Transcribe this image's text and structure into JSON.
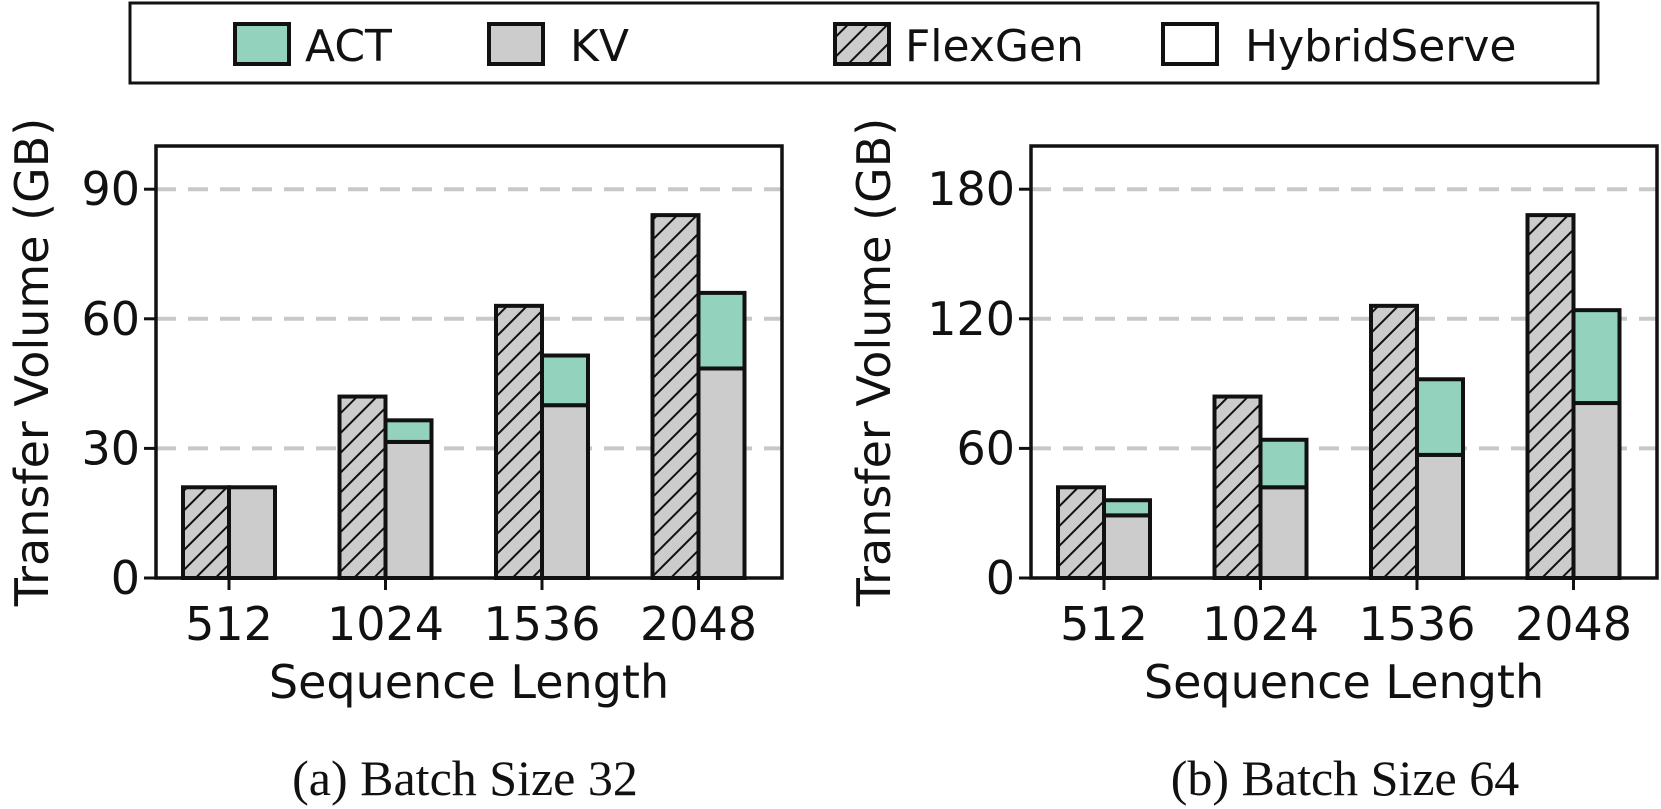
{
  "legend": {
    "items": [
      {
        "label": "ACT",
        "kind": "act"
      },
      {
        "label": "KV",
        "kind": "kv"
      },
      {
        "label": "FlexGen",
        "kind": "flexgen"
      },
      {
        "label": "HybridServe",
        "kind": "hybridserve"
      }
    ]
  },
  "colors": {
    "act": "#93d3bd",
    "kv": "#cccccc",
    "flexgen_fill": "#cccccc",
    "grid": "#c8c8c8",
    "stroke": "#111111"
  },
  "chart_data": [
    {
      "type": "bar",
      "caption": "(a) Batch Size 32",
      "xlabel": "Sequence Length",
      "ylabel": "Transfer Volume (GB)",
      "categories": [
        "512",
        "1024",
        "1536",
        "2048"
      ],
      "ylim": [
        0,
        100
      ],
      "yticks": [
        0,
        30,
        60,
        90
      ],
      "grid": "horizontal dashed",
      "series": [
        {
          "name": "FlexGen",
          "stack": "flexgen",
          "component": "KV",
          "values": [
            21,
            42,
            63,
            84
          ]
        },
        {
          "name": "HybridServe",
          "stack": "hybridserve",
          "component": "KV",
          "values": [
            21,
            31.5,
            40,
            48.5
          ]
        },
        {
          "name": "HybridServe",
          "stack": "hybridserve",
          "component": "ACT",
          "values": [
            0,
            5,
            11.5,
            17.5
          ]
        }
      ]
    },
    {
      "type": "bar",
      "caption": "(b) Batch Size 64",
      "xlabel": "Sequence Length",
      "ylabel": "Transfer Volume (GB)",
      "categories": [
        "512",
        "1024",
        "1536",
        "2048"
      ],
      "ylim": [
        0,
        200
      ],
      "yticks": [
        0,
        60,
        120,
        180
      ],
      "grid": "horizontal dashed",
      "series": [
        {
          "name": "FlexGen",
          "stack": "flexgen",
          "component": "KV",
          "values": [
            42,
            84,
            126,
            168
          ]
        },
        {
          "name": "HybridServe",
          "stack": "hybridserve",
          "component": "KV",
          "values": [
            29,
            42,
            57,
            81
          ]
        },
        {
          "name": "HybridServe",
          "stack": "hybridserve",
          "component": "ACT",
          "values": [
            7,
            22,
            35,
            43
          ]
        }
      ]
    }
  ]
}
